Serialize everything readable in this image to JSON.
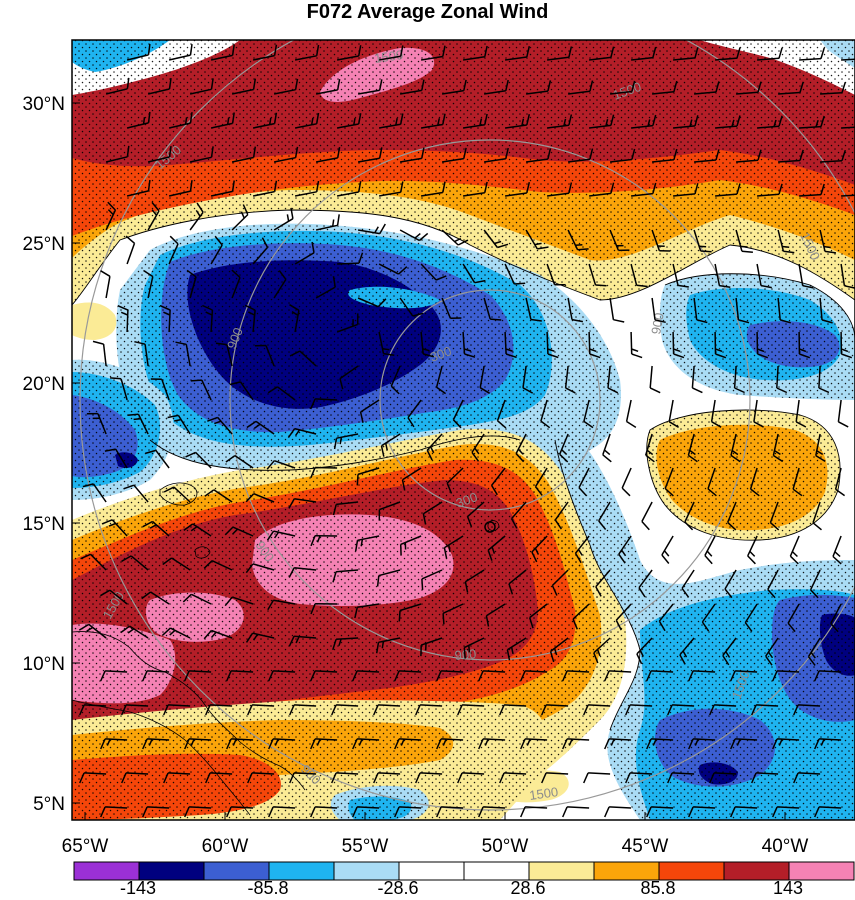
{
  "title": "F072 Average Zonal Wind",
  "colors": {
    "purple": "#9b30d6",
    "navy": "#00007f",
    "blue": "#3c5fd2",
    "cyan": "#1fb4f0",
    "lightblue": "#aadcf5",
    "white": "#ffffff",
    "lightyellow": "#fbeb96",
    "orange": "#fba50a",
    "redorange": "#f5460a",
    "darkred": "#b41e28",
    "pink": "#f582b4",
    "ring": "#999999"
  },
  "lat_labels": [
    "30°N",
    "25°N",
    "20°N",
    "15°N",
    "10°N",
    "5°N"
  ],
  "lon_labels": [
    "65°W",
    "60°W",
    "55°W",
    "50°W",
    "45°W",
    "40°W"
  ],
  "colorbar": {
    "labels": [
      "-143",
      "-85.8",
      "-28.6",
      "28.6",
      "85.8",
      "143"
    ]
  },
  "ring_labels": [
    "300",
    "300",
    "900",
    "900",
    "900",
    "900",
    "1500",
    "1500",
    "1500",
    "1500",
    "1500",
    "1500",
    "1500"
  ]
}
